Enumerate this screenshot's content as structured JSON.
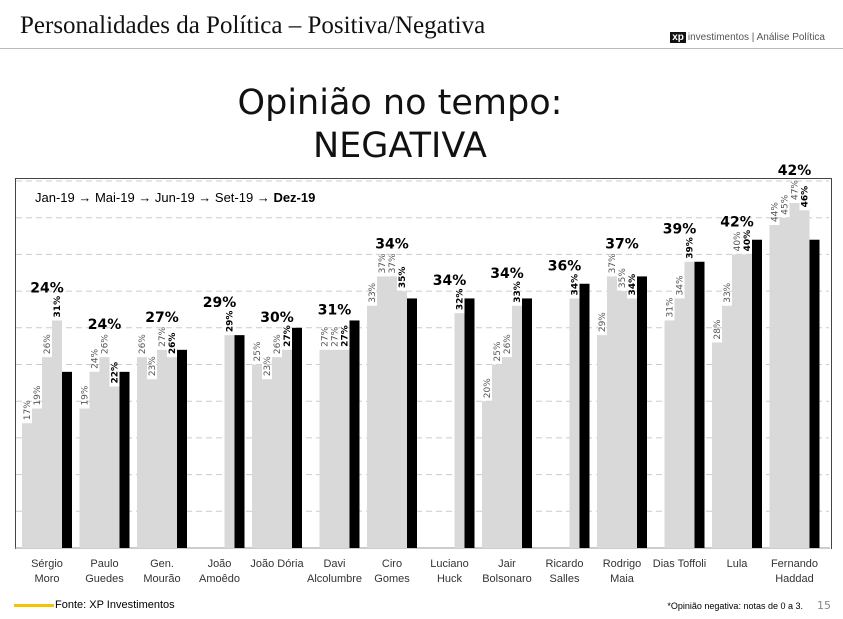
{
  "header": {
    "title": "Personalidades da Política – Positiva/Negativa",
    "logo_xp": "xp",
    "logo_text": "investimentos",
    "logo_sub": "Análise Política"
  },
  "slide_title_line1": "Opinião no tempo:",
  "slide_title_line2": "NEGATIVA",
  "legend_text": "Jan-19 → Mai-19 → Jun-19 → Set-19 → ",
  "legend_bold": "Dez-19",
  "footer": {
    "source": "Fonte: XP Investimentos",
    "note": "*Opinião negativa: notas de 0 a 3.",
    "page": "15"
  },
  "colors": {
    "past": "#d9d9d9",
    "current": "#000000",
    "accent": "#f5c400"
  },
  "chart_data": {
    "type": "bar",
    "periods": [
      "Jan-19",
      "Mai-19",
      "Jun-19",
      "Set-19",
      "Dez-19"
    ],
    "ylim": [
      0,
      50
    ],
    "grid": true,
    "unit": "%",
    "categories": [
      "Sérgio Moro",
      "Paulo Guedes",
      "Gen. Mourão",
      "João Amoêdo",
      "João Dória",
      "Davi Alcolumbre",
      "Ciro Gomes",
      "Luciano Huck",
      "Jair Bolsonaro",
      "Ricardo Salles",
      "Rodrigo Maia",
      "Dias Toffoli",
      "Lula",
      "Fernando Haddad"
    ],
    "category_labels": [
      [
        "Sérgio",
        "Moro"
      ],
      [
        "Paulo",
        "Guedes"
      ],
      [
        "Gen.",
        "Mourão"
      ],
      [
        "João",
        "Amoêdo"
      ],
      [
        "João Dória",
        ""
      ],
      [
        "Davi",
        "Alcolumbre"
      ],
      [
        "Ciro",
        "Gomes"
      ],
      [
        "Luciano",
        "Huck"
      ],
      [
        "Jair",
        "Bolsonaro"
      ],
      [
        "Ricardo",
        "Salles"
      ],
      [
        "Rodrigo",
        "Maia"
      ],
      [
        "Dias Toffoli",
        ""
      ],
      [
        "Lula",
        ""
      ],
      [
        "Fernando",
        "Haddad"
      ]
    ],
    "values": [
      [
        17,
        19,
        26,
        31,
        24
      ],
      [
        19,
        24,
        26,
        22,
        24
      ],
      [
        26,
        23,
        27,
        26,
        27
      ],
      [
        null,
        null,
        null,
        29,
        29
      ],
      [
        25,
        23,
        26,
        27,
        30
      ],
      [
        null,
        27,
        27,
        27,
        31
      ],
      [
        33,
        37,
        37,
        35,
        34
      ],
      [
        null,
        null,
        null,
        32,
        34
      ],
      [
        20,
        25,
        26,
        33,
        34
      ],
      [
        null,
        null,
        null,
        34,
        36
      ],
      [
        29,
        37,
        35,
        34,
        37
      ],
      [
        null,
        31,
        34,
        39,
        39
      ],
      [
        28,
        33,
        40,
        40,
        42
      ],
      [
        44,
        45,
        47,
        46,
        42
      ]
    ]
  }
}
